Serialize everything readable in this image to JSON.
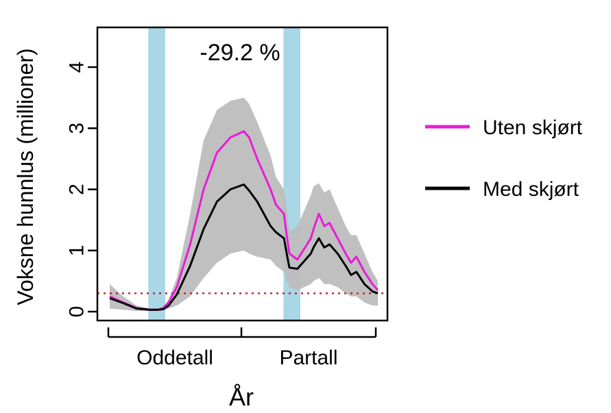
{
  "chart_data": {
    "type": "line",
    "ylabel": "Voksne hunnlus (millioner)",
    "xlabel": "År",
    "annotation": "-29.2 %",
    "x_tick_labels": [
      "Oddetall",
      "Partall"
    ],
    "y_ticks": [
      0,
      1,
      2,
      3,
      4
    ],
    "y_tick_labels": [
      "0",
      "1",
      "2",
      "3",
      "4"
    ],
    "ylim": [
      -0.1,
      4.6
    ],
    "xlim": [
      0,
      100
    ],
    "reference_line": {
      "y": 0.3,
      "color": "#c0262d",
      "style": "dotted"
    },
    "shaded_periods": [
      {
        "x_start": 14.4,
        "x_end": 20.7,
        "color": "#a9d7e6"
      },
      {
        "x_start": 64.8,
        "x_end": 71.1,
        "color": "#a9d7e6"
      }
    ],
    "band_color": "#bdbdbd",
    "legend_placement": "right",
    "series": [
      {
        "name": "Uten skjørt",
        "color": "#e81cd7",
        "x": [
          0,
          5,
          10,
          15,
          18,
          20,
          22,
          25,
          30,
          35,
          40,
          45,
          50,
          52,
          55,
          60,
          62,
          65,
          66,
          67,
          70,
          75,
          76,
          78,
          80,
          82,
          85,
          88,
          90,
          92,
          95,
          98,
          100
        ],
        "y": [
          0.25,
          0.15,
          0.06,
          0.03,
          0.03,
          0.06,
          0.15,
          0.4,
          1.1,
          2.0,
          2.6,
          2.85,
          2.95,
          2.85,
          2.5,
          2.0,
          1.75,
          1.6,
          1.25,
          0.95,
          0.85,
          1.2,
          1.35,
          1.6,
          1.4,
          1.45,
          1.2,
          0.95,
          0.8,
          0.9,
          0.65,
          0.45,
          0.35
        ]
      },
      {
        "name": "Med skjørt",
        "color": "#000000",
        "x": [
          0,
          5,
          10,
          15,
          18,
          20,
          22,
          25,
          30,
          35,
          40,
          45,
          50,
          52,
          55,
          60,
          62,
          65,
          66,
          67,
          70,
          75,
          76,
          78,
          80,
          82,
          85,
          88,
          90,
          92,
          95,
          98,
          100
        ],
        "y": [
          0.22,
          0.14,
          0.05,
          0.03,
          0.03,
          0.04,
          0.1,
          0.28,
          0.75,
          1.35,
          1.8,
          2.0,
          2.08,
          1.98,
          1.8,
          1.4,
          1.3,
          1.2,
          0.95,
          0.72,
          0.7,
          0.95,
          1.05,
          1.2,
          1.05,
          1.1,
          0.95,
          0.75,
          0.6,
          0.65,
          0.45,
          0.33,
          0.3
        ]
      }
    ],
    "band": {
      "x": [
        0,
        5,
        10,
        15,
        18,
        20,
        22,
        25,
        30,
        35,
        40,
        45,
        50,
        52,
        55,
        60,
        62,
        65,
        66,
        67,
        70,
        75,
        76,
        78,
        80,
        82,
        85,
        88,
        90,
        92,
        95,
        98,
        100
      ],
      "lower": [
        0.05,
        0.03,
        0.01,
        0.01,
        0.01,
        0.02,
        0.05,
        0.1,
        0.25,
        0.55,
        0.8,
        0.95,
        1.0,
        0.95,
        0.9,
        0.85,
        0.75,
        0.65,
        0.5,
        0.4,
        0.35,
        0.45,
        0.5,
        0.55,
        0.45,
        0.45,
        0.4,
        0.3,
        0.25,
        0.25,
        0.15,
        0.1,
        0.1
      ],
      "upper": [
        0.45,
        0.25,
        0.1,
        0.05,
        0.05,
        0.08,
        0.2,
        0.55,
        1.6,
        2.8,
        3.3,
        3.45,
        3.5,
        3.4,
        3.1,
        2.55,
        2.2,
        2.0,
        1.7,
        1.3,
        1.4,
        1.9,
        2.05,
        2.1,
        1.95,
        2.0,
        1.7,
        1.4,
        1.25,
        1.25,
        0.95,
        0.65,
        0.5
      ]
    }
  },
  "legend": {
    "items": [
      {
        "label": "Uten skjørt",
        "color": "#e81cd7"
      },
      {
        "label": "Med skjørt",
        "color": "#000000"
      }
    ]
  }
}
